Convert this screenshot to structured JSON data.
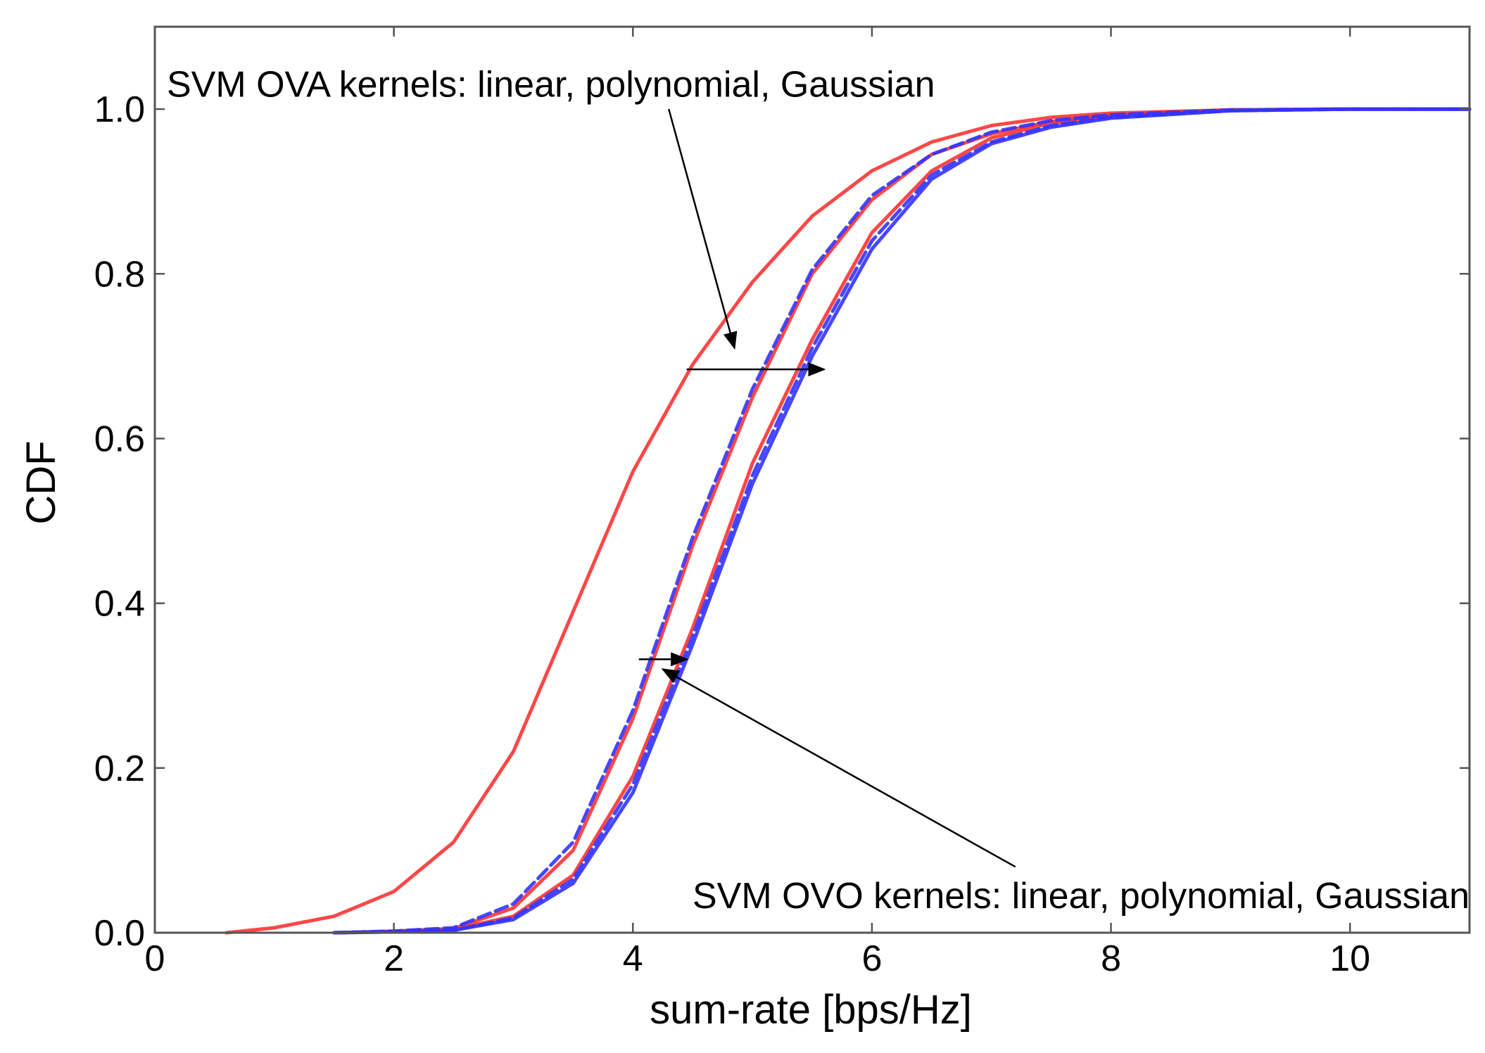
{
  "chart_data": {
    "type": "line",
    "title": "",
    "xlabel": "sum-rate [bps/Hz]",
    "ylabel": "CDF",
    "xlim": [
      0,
      11
    ],
    "ylim": [
      0,
      1.1
    ],
    "xticks": [
      0,
      2,
      4,
      6,
      8,
      10
    ],
    "xtick_labels": [
      "0",
      "2",
      "4",
      "6",
      "8",
      "10"
    ],
    "yticks": [
      0.0,
      0.2,
      0.4,
      0.6,
      0.8,
      1.0
    ],
    "ytick_labels": [
      "0.0",
      "0.2",
      "0.4",
      "0.6",
      "0.8",
      "1.0"
    ],
    "grid": false,
    "colors": {
      "ova": "#ff3333",
      "ovo": "#3333ff",
      "axis": "#555555",
      "annotation": "#000000"
    },
    "series": [
      {
        "name": "SVM OVA linear",
        "color": "#ff3333",
        "style": "solid",
        "x": [
          0.6,
          1.0,
          1.5,
          2.0,
          2.5,
          3.0,
          3.5,
          4.0,
          4.5,
          5.0,
          5.5,
          6.0,
          6.5,
          7.0,
          7.5,
          8.0,
          9.0,
          10.0,
          11.0
        ],
        "y": [
          0.0,
          0.006,
          0.02,
          0.05,
          0.11,
          0.22,
          0.39,
          0.56,
          0.69,
          0.79,
          0.87,
          0.925,
          0.96,
          0.98,
          0.99,
          0.995,
          0.999,
          1.0,
          1.0
        ]
      },
      {
        "name": "SVM OVA polynomial",
        "color": "#ff3333",
        "style": "solid",
        "x": [
          1.5,
          2.0,
          2.5,
          3.0,
          3.5,
          4.0,
          4.5,
          5.0,
          5.5,
          6.0,
          6.5,
          7.0,
          7.5,
          8.0,
          9.0,
          10.0,
          11.0
        ],
        "y": [
          0.0,
          0.002,
          0.005,
          0.03,
          0.1,
          0.26,
          0.47,
          0.65,
          0.8,
          0.89,
          0.945,
          0.97,
          0.985,
          0.993,
          0.999,
          1.0,
          1.0
        ]
      },
      {
        "name": "SVM OVA Gaussian",
        "color": "#ff3333",
        "style": "solid",
        "x": [
          1.5,
          2.0,
          2.5,
          3.0,
          3.5,
          4.0,
          4.5,
          5.0,
          5.5,
          6.0,
          6.5,
          7.0,
          7.5,
          8.0,
          9.0,
          10.0,
          11.0
        ],
        "y": [
          0.0,
          0.001,
          0.004,
          0.02,
          0.07,
          0.19,
          0.37,
          0.57,
          0.72,
          0.85,
          0.925,
          0.965,
          0.983,
          0.992,
          0.999,
          1.0,
          1.0
        ]
      },
      {
        "name": "SVM OVO linear",
        "color": "#3333ff",
        "style": "dashed",
        "x": [
          1.5,
          2.0,
          2.5,
          3.0,
          3.5,
          4.0,
          4.5,
          5.0,
          5.5,
          6.0,
          6.5,
          7.0,
          7.5,
          8.0,
          9.0,
          10.0,
          11.0
        ],
        "y": [
          0.0,
          0.002,
          0.006,
          0.035,
          0.11,
          0.27,
          0.48,
          0.66,
          0.805,
          0.895,
          0.945,
          0.972,
          0.986,
          0.993,
          0.999,
          1.0,
          1.0
        ]
      },
      {
        "name": "SVM OVO polynomial",
        "color": "#3333ff",
        "style": "dashed",
        "x": [
          1.5,
          2.0,
          2.5,
          3.0,
          3.5,
          4.0,
          4.5,
          5.0,
          5.5,
          6.0,
          6.5,
          7.0,
          7.5,
          8.0,
          9.0,
          10.0,
          11.0
        ],
        "y": [
          0.0,
          0.001,
          0.003,
          0.018,
          0.065,
          0.18,
          0.36,
          0.555,
          0.71,
          0.84,
          0.92,
          0.96,
          0.98,
          0.99,
          0.998,
          1.0,
          1.0
        ]
      },
      {
        "name": "SVM OVO Gaussian",
        "color": "#3333ff",
        "style": "solid",
        "x": [
          1.5,
          2.0,
          2.5,
          3.0,
          3.5,
          4.0,
          4.5,
          5.0,
          5.5,
          6.0,
          6.5,
          7.0,
          7.5,
          8.0,
          9.0,
          10.0,
          11.0
        ],
        "y": [
          0.0,
          0.001,
          0.003,
          0.016,
          0.06,
          0.17,
          0.35,
          0.545,
          0.7,
          0.83,
          0.915,
          0.958,
          0.978,
          0.989,
          0.998,
          1.0,
          1.0
        ]
      }
    ],
    "annotations": [
      {
        "text": "SVM OVA kernels: linear, polynomial, Gaussian",
        "text_x": 0.1,
        "text_y": 1.015,
        "text_anchor": "start",
        "pointer_from": [
          4.3,
          1.0
        ],
        "pointer_to": [
          4.85,
          0.71
        ],
        "span_from": [
          4.45,
          0.684
        ],
        "span_to": [
          5.6,
          0.684
        ]
      },
      {
        "text": "SVM OVO kernels: linear, polynomial, Gaussian",
        "text_x": 11.0,
        "text_y": 0.03,
        "text_anchor": "end",
        "pointer_from": [
          7.2,
          0.08
        ],
        "pointer_to": [
          4.25,
          0.32
        ],
        "span_from": [
          4.05,
          0.332
        ],
        "span_to": [
          4.45,
          0.332
        ]
      }
    ]
  }
}
